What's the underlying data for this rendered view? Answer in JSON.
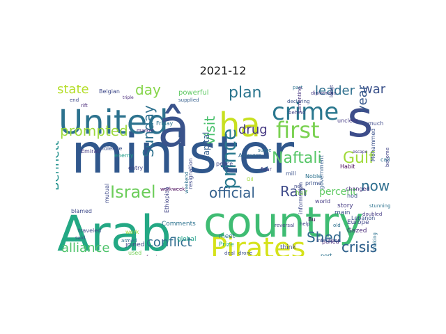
{
  "figure": {
    "title": "2021-12"
  },
  "word_cloud": {
    "words": [
      {
        "text": "minister",
        "color": "#30578c"
      },
      {
        "text": "Arab",
        "color": "#23a884"
      },
      {
        "text": "country",
        "color": "#3fbc73"
      },
      {
        "text": "United",
        "color": "#2c728e"
      },
      {
        "text": "â",
        "color": "#3a538b"
      },
      {
        "text": "ha",
        "color": "#c8e020"
      },
      {
        "text": "crime",
        "color": "#2a778e"
      },
      {
        "text": "s",
        "color": "#3d4d8a"
      },
      {
        "text": "first",
        "color": "#7ad151"
      },
      {
        "text": "Pirates",
        "color": "#d5e21a"
      },
      {
        "text": "Israel",
        "color": "#6ccd5a"
      },
      {
        "text": "Naftali",
        "color": "#56c667"
      },
      {
        "text": "Gulf",
        "color": "#a0da39"
      },
      {
        "text": "official",
        "color": "#34608d"
      },
      {
        "text": "prince",
        "color": "#29798e"
      },
      {
        "text": "visit",
        "color": "#4ac16d"
      },
      {
        "text": "plan",
        "color": "#2b758e"
      },
      {
        "text": "leader",
        "color": "#2e6f8e"
      },
      {
        "text": "war",
        "color": "#3b528b"
      },
      {
        "text": "year",
        "color": "#38598c"
      },
      {
        "text": "drug",
        "color": "#453882"
      },
      {
        "text": "prompted",
        "color": "#9bd93c"
      },
      {
        "text": "state",
        "color": "#b5de2b"
      },
      {
        "text": "day",
        "color": "#86d549"
      },
      {
        "text": "Sunday",
        "color": "#2d708e"
      },
      {
        "text": "Bennett",
        "color": "#21918c"
      },
      {
        "text": "alliance",
        "color": "#4ec36b"
      },
      {
        "text": "conflict",
        "color": "#2f6c8e"
      },
      {
        "text": "Shed",
        "color": "#31688e"
      },
      {
        "text": "crisis",
        "color": "#33638d"
      },
      {
        "text": "Ran",
        "color": "#3e4a89"
      },
      {
        "text": "now",
        "color": "#2e6e8e"
      },
      {
        "text": "percent",
        "color": "#5ec962"
      },
      {
        "text": "capital",
        "color": "#355f8d"
      },
      {
        "text": "Comments",
        "color": "#2c728e"
      },
      {
        "text": "resignation",
        "color": "#3e4989"
      },
      {
        "text": "global",
        "color": "#1fa188"
      },
      {
        "text": "Prize",
        "color": "#2db27d"
      },
      {
        "text": "Europe",
        "color": "#404588"
      },
      {
        "text": "joined",
        "color": "#414487"
      },
      {
        "text": "used",
        "color": "#73d056"
      },
      {
        "text": "built",
        "color": "#46337f"
      },
      {
        "text": "meet",
        "color": "#2c728e"
      },
      {
        "text": "main",
        "color": "#3b528b"
      },
      {
        "text": "story",
        "color": "#443a83"
      },
      {
        "text": "Gazed",
        "color": "#482878"
      },
      {
        "text": "Lebanon",
        "color": "#3b528b"
      },
      {
        "text": "crisis",
        "color": "#33638d"
      },
      {
        "text": "making",
        "color": "#2c728e"
      },
      {
        "text": "nod",
        "color": "#3b528b"
      },
      {
        "text": "changed",
        "color": "#46337f"
      },
      {
        "text": "call",
        "color": "#2d708e"
      },
      {
        "text": "world",
        "color": "#443a83"
      },
      {
        "text": "information",
        "color": "#3e4989"
      },
      {
        "text": "government",
        "color": "#355f8d"
      },
      {
        "text": "Habit",
        "color": "#440154"
      },
      {
        "text": "prime",
        "color": "#3b528b"
      },
      {
        "text": "Noble",
        "color": "#2c728e"
      },
      {
        "text": "half",
        "color": "#7ad151"
      },
      {
        "text": "fear",
        "color": "#433e85"
      },
      {
        "text": "mill",
        "color": "#3b528b"
      },
      {
        "text": "Antwerp",
        "color": "#31688e"
      },
      {
        "text": "peace",
        "color": "#3e4989"
      },
      {
        "text": "weekend",
        "color": "#2d708e"
      },
      {
        "text": "workweek",
        "color": "#440154"
      },
      {
        "text": "mutual",
        "color": "#3e4989"
      },
      {
        "text": "enemy",
        "color": "#1f9e89"
      },
      {
        "text": "violence",
        "color": "#3b528b"
      },
      {
        "text": "entry",
        "color": "#414487"
      },
      {
        "text": "Emirati",
        "color": "#443a83"
      },
      {
        "text": "blamed",
        "color": "#3e4989"
      },
      {
        "text": "Friday",
        "color": "#2c728e"
      },
      {
        "text": "market",
        "color": "#482878"
      },
      {
        "text": "end",
        "color": "#3e4989"
      },
      {
        "text": "rift",
        "color": "#482878"
      },
      {
        "text": "Belgian",
        "color": "#3e4989"
      },
      {
        "text": "triple",
        "color": "#482878"
      },
      {
        "text": "powerful",
        "color": "#5ec962"
      },
      {
        "text": "supplied",
        "color": "#355f8d"
      },
      {
        "text": "diplomatic",
        "color": "#443a83"
      },
      {
        "text": "part",
        "color": "#2c728e"
      },
      {
        "text": "behind",
        "color": "#414487"
      },
      {
        "text": "declaring",
        "color": "#3b528b"
      },
      {
        "text": "surge",
        "color": "#2d708e"
      },
      {
        "text": "Ethiopiaâ",
        "color": "#414487"
      },
      {
        "text": "traveled",
        "color": "#3e4989"
      },
      {
        "text": "armed",
        "color": "#2d708e"
      },
      {
        "text": "said",
        "color": "#3e4989"
      },
      {
        "text": "work",
        "color": "#a0da39"
      },
      {
        "text": "think",
        "color": "#3e4989"
      },
      {
        "text": "port",
        "color": "#2c728e"
      },
      {
        "text": "pulled",
        "color": "#482878"
      },
      {
        "text": "Bu",
        "color": "#440154"
      },
      {
        "text": "Mohammed",
        "color": "#3b528b"
      },
      {
        "text": "become",
        "color": "#414487"
      },
      {
        "text": "much",
        "color": "#3e4989"
      },
      {
        "text": "unclear",
        "color": "#443a83"
      },
      {
        "text": "longtime",
        "color": "#414487"
      },
      {
        "text": "Lamenting",
        "color": "#46337f"
      },
      {
        "text": "deal",
        "color": "#3e4989"
      },
      {
        "text": "drone",
        "color": "#3b528b"
      },
      {
        "text": "reversal",
        "color": "#414487"
      },
      {
        "text": "Infections",
        "color": "#3e4989"
      },
      {
        "text": "doubled",
        "color": "#443a83"
      },
      {
        "text": "stunning",
        "color": "#2c728e"
      },
      {
        "text": "old",
        "color": "#2d708e"
      },
      {
        "text": "net",
        "color": "#3e4989"
      },
      {
        "text": "foreign",
        "color": "#440154"
      },
      {
        "text": "help",
        "color": "#414487"
      },
      {
        "text": "escape",
        "color": "#443a83"
      },
      {
        "text": "Oil",
        "color": "#a0da39"
      }
    ]
  }
}
